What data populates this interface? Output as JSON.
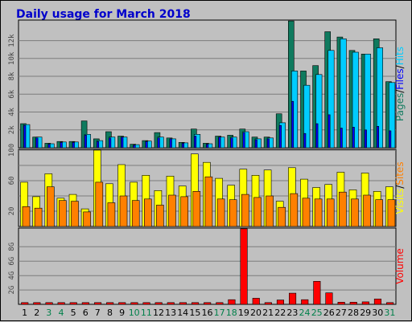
{
  "colors": {
    "background": "#c0c0c0",
    "title": "#0000cc",
    "pages": "#0f7a5e",
    "files": "#0000ff",
    "hits": "#00ccff",
    "visits": "#ffff00",
    "sites": "#ff8000",
    "volume": "#ff0000",
    "weekday_label": "#000000",
    "weekend_label": "#00804a"
  },
  "chart_data": [
    {
      "type": "bar",
      "title": "Daily usage for March 2018",
      "categories": [
        "1",
        "2",
        "3",
        "4",
        "5",
        "6",
        "7",
        "8",
        "9",
        "10",
        "11",
        "12",
        "13",
        "14",
        "15",
        "16",
        "17",
        "18",
        "19",
        "20",
        "21",
        "22",
        "23",
        "24",
        "25",
        "26",
        "27",
        "28",
        "29",
        "30",
        "31"
      ],
      "weekend_days": [
        "3",
        "4",
        "10",
        "11",
        "17",
        "18",
        "24",
        "25",
        "31"
      ],
      "series_label_parts": [
        "Pages",
        "/",
        "Files",
        "/",
        "Hits"
      ],
      "ylim": [
        0,
        14300
      ],
      "yticks": [
        2000,
        4000,
        6000,
        8000,
        10000,
        12000
      ],
      "ytick_labels": [
        "2k",
        "4k",
        "6k",
        "8k",
        "10k",
        "12k"
      ],
      "series": [
        {
          "name": "Pages",
          "values": [
            2700,
            1200,
            500,
            700,
            700,
            3000,
            1000,
            1800,
            1300,
            400,
            800,
            1700,
            1100,
            600,
            2100,
            500,
            1300,
            1400,
            2100,
            1200,
            1200,
            3800,
            14200,
            8600,
            9200,
            13000,
            12400,
            10900,
            10500,
            12200,
            7400
          ]
        },
        {
          "name": "Files",
          "values": [
            2500,
            1100,
            400,
            600,
            600,
            1400,
            700,
            1100,
            1200,
            300,
            700,
            1100,
            1000,
            500,
            1300,
            400,
            1200,
            1100,
            1700,
            900,
            1000,
            2500,
            5200,
            1600,
            2700,
            3700,
            2200,
            2300,
            2000,
            2400,
            1900
          ]
        },
        {
          "name": "Hits",
          "values": [
            2600,
            1200,
            450,
            650,
            650,
            1500,
            800,
            1200,
            1200,
            350,
            750,
            1200,
            1000,
            550,
            1500,
            450,
            1200,
            1200,
            1800,
            1000,
            1100,
            2800,
            8600,
            7000,
            8200,
            10900,
            12200,
            10700,
            10500,
            11200,
            7300
          ]
        }
      ]
    },
    {
      "type": "bar",
      "categories": [
        "1",
        "2",
        "3",
        "4",
        "5",
        "6",
        "7",
        "8",
        "9",
        "10",
        "11",
        "12",
        "13",
        "14",
        "15",
        "16",
        "17",
        "18",
        "19",
        "20",
        "21",
        "22",
        "23",
        "24",
        "25",
        "26",
        "27",
        "28",
        "29",
        "30",
        "31"
      ],
      "series_label_parts": [
        "Visits",
        "/",
        "Sites"
      ],
      "ylim": [
        0,
        101
      ],
      "yticks": [
        20,
        40,
        60,
        80,
        100
      ],
      "ytick_labels": [
        "20",
        "",
        "60",
        "",
        "100"
      ],
      "series": [
        {
          "name": "Visits",
          "values": [
            58,
            39,
            69,
            37,
            42,
            23,
            100,
            56,
            81,
            58,
            67,
            47,
            66,
            53,
            95,
            84,
            63,
            54,
            75,
            67,
            74,
            33,
            77,
            62,
            51,
            55,
            71,
            48,
            70,
            46,
            52
          ]
        },
        {
          "name": "Sites",
          "values": [
            26,
            24,
            52,
            34,
            33,
            19,
            58,
            31,
            40,
            34,
            36,
            28,
            41,
            39,
            46,
            65,
            36,
            35,
            42,
            38,
            40,
            25,
            43,
            37,
            36,
            36,
            45,
            36,
            41,
            35,
            35
          ]
        }
      ]
    },
    {
      "type": "bar",
      "categories": [
        "1",
        "2",
        "3",
        "4",
        "5",
        "6",
        "7",
        "8",
        "9",
        "10",
        "11",
        "12",
        "13",
        "14",
        "15",
        "16",
        "17",
        "18",
        "19",
        "20",
        "21",
        "22",
        "23",
        "24",
        "25",
        "26",
        "27",
        "28",
        "29",
        "30",
        "31"
      ],
      "series_label_parts": [
        "Volume"
      ],
      "ylim": [
        0,
        10.6
      ],
      "yticks": [
        2,
        4,
        6,
        8
      ],
      "ytick_labels": [
        "2G",
        "4G",
        "6G",
        "8G"
      ],
      "series": [
        {
          "name": "Volume",
          "values": [
            0.25,
            0.25,
            0.25,
            0.25,
            0.25,
            0.25,
            0.25,
            0.25,
            0.25,
            0.25,
            0.25,
            0.25,
            0.25,
            0.25,
            0.25,
            0.25,
            0.25,
            0.65,
            10.5,
            0.85,
            0.25,
            0.6,
            1.55,
            0.65,
            3.2,
            1.6,
            0.3,
            0.3,
            0.35,
            0.75,
            0.25
          ]
        }
      ]
    }
  ]
}
